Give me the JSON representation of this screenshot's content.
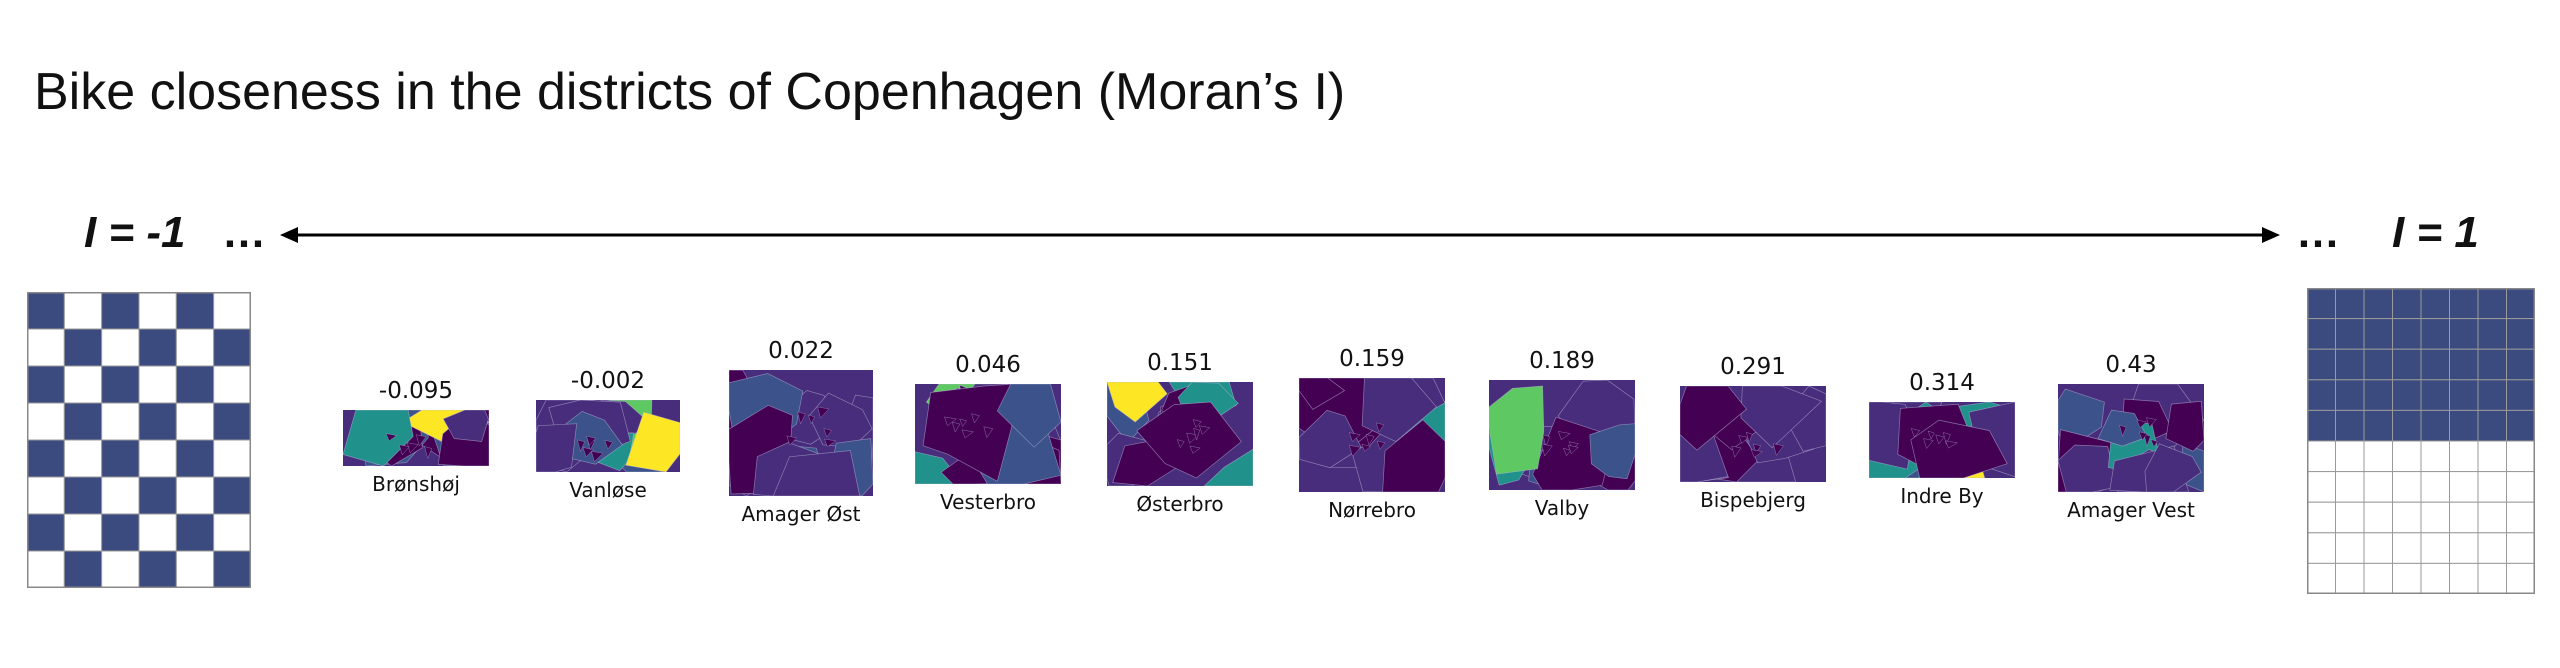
{
  "title": "Bike closeness in the districts of Copenhagen (Moran’s I)",
  "scale": {
    "left_label": "I = -1",
    "right_label": "I = 1",
    "left_dots": "…",
    "right_dots": "…"
  },
  "colors": {
    "navy": "#3b4a7f",
    "viridis_dark": "#440154",
    "viridis_purple": "#472d7b",
    "viridis_blue": "#3b528b",
    "viridis_teal": "#21918c",
    "viridis_green": "#5ec962",
    "viridis_yellow": "#fde725"
  },
  "districts": [
    {
      "name": "Brønshøj",
      "value": "-0.095"
    },
    {
      "name": "Vanløse",
      "value": "-0.002"
    },
    {
      "name": "Amager Øst",
      "value": "0.022"
    },
    {
      "name": "Vesterbro",
      "value": "0.046"
    },
    {
      "name": "Østerbro",
      "value": "0.151"
    },
    {
      "name": "Nørrebro",
      "value": "0.159"
    },
    {
      "name": "Valby",
      "value": "0.189"
    },
    {
      "name": "Bispebjerg",
      "value": "0.291"
    },
    {
      "name": "Indre By",
      "value": "0.314"
    },
    {
      "name": "Amager Vest",
      "value": "0.43"
    }
  ]
}
